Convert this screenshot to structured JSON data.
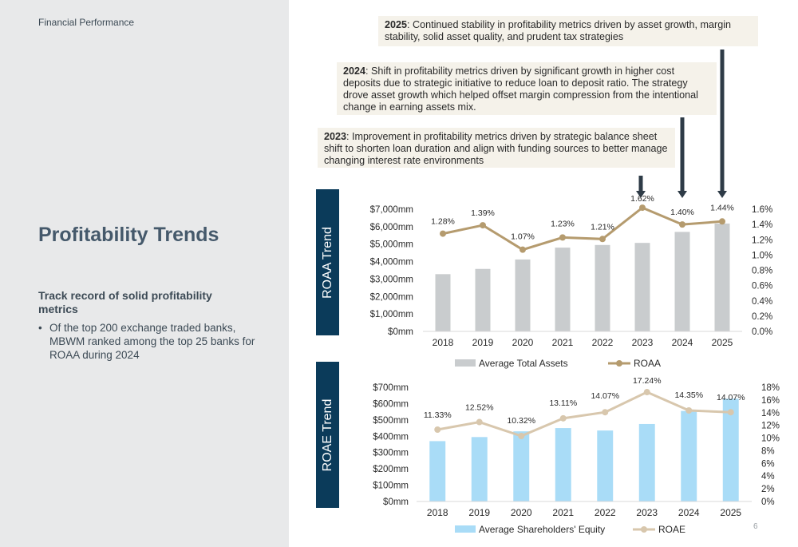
{
  "header": {
    "section": "Financial Performance"
  },
  "left": {
    "title": "Profitability Trends",
    "subheading": "Track record of solid profitability metrics",
    "bullet": "Of the top 200 exchange traded banks, MBWM ranked among the top 25 banks for ROAA during 2024"
  },
  "notes": [
    {
      "year": "2025",
      "text": ": Continued stability in profitability metrics driven by asset growth, margin stability, solid asset quality, and prudent tax strategies"
    },
    {
      "year": "2024",
      "text": ": Shift in profitability metrics driven by significant growth in higher cost deposits due to strategic initiative to reduce loan to deposit ratio. The strategy drove asset growth which helped offset margin compression from the intentional change in earning assets mix."
    },
    {
      "year": "2023",
      "text": ": Improvement in profitability metrics driven by strategic balance sheet shift to shorten loan duration and align with funding sources to better manage changing interest rate environments"
    }
  ],
  "bands": {
    "roaa": "ROAA Trend",
    "roae": "ROAE Trend"
  },
  "colors": {
    "band": "#0b3b5a",
    "assets_bar": "#c9ccce",
    "roaa_line": "#b59b6e",
    "equity_bar": "#a9dcf7",
    "roae_line": "#d8c7ad",
    "note_bg": "#f5f2ea",
    "arrow": "#2e3b47"
  },
  "chart_data": [
    {
      "type": "bar",
      "categories": [
        "2018",
        "2019",
        "2020",
        "2021",
        "2022",
        "2023",
        "2024",
        "2025"
      ],
      "series": [
        {
          "name": "Average Total Assets",
          "type": "bar",
          "axis": "left",
          "values": [
            3280,
            3580,
            4120,
            4800,
            4950,
            5070,
            5700,
            6180
          ]
        },
        {
          "name": "ROAA",
          "type": "line",
          "axis": "right",
          "values": [
            1.28,
            1.39,
            1.07,
            1.23,
            1.21,
            1.62,
            1.4,
            1.44
          ],
          "labels": [
            "1.28%",
            "1.39%",
            "1.07%",
            "1.23%",
            "1.21%",
            "1.62%",
            "1.40%",
            "1.44%"
          ]
        }
      ],
      "ylim_left": [
        0,
        7000
      ],
      "ylim_right": [
        0,
        1.6
      ],
      "yticks_left": [
        "$0mm",
        "$1,000mm",
        "$2,000mm",
        "$3,000mm",
        "$4,000mm",
        "$5,000mm",
        "$6,000mm",
        "$7,000mm"
      ],
      "yticks_right": [
        "0.0%",
        "0.2%",
        "0.4%",
        "0.6%",
        "0.8%",
        "1.0%",
        "1.2%",
        "1.4%",
        "1.6%"
      ],
      "legend": "bottom",
      "grid": false
    },
    {
      "type": "bar",
      "categories": [
        "2018",
        "2019",
        "2020",
        "2021",
        "2022",
        "2023",
        "2024",
        "2025"
      ],
      "series": [
        {
          "name": "Average Shareholders' Equity",
          "type": "bar",
          "axis": "left",
          "values": [
            370,
            395,
            430,
            450,
            435,
            475,
            555,
            630
          ]
        },
        {
          "name": "ROAE",
          "type": "line",
          "axis": "right",
          "values": [
            11.33,
            12.52,
            10.32,
            13.11,
            14.07,
            17.24,
            14.35,
            14.07
          ],
          "labels": [
            "11.33%",
            "12.52%",
            "10.32%",
            "13.11%",
            "14.07%",
            "17.24%",
            "14.35%",
            "14.07%"
          ]
        }
      ],
      "ylim_left": [
        0,
        700
      ],
      "ylim_right": [
        0,
        18
      ],
      "yticks_left": [
        "$0mm",
        "$100mm",
        "$200mm",
        "$300mm",
        "$400mm",
        "$500mm",
        "$600mm",
        "$700mm"
      ],
      "yticks_right": [
        "0%",
        "2%",
        "4%",
        "6%",
        "8%",
        "10%",
        "12%",
        "14%",
        "16%",
        "18%"
      ],
      "legend": "bottom",
      "grid": false
    }
  ],
  "footer": {
    "page": "6"
  }
}
